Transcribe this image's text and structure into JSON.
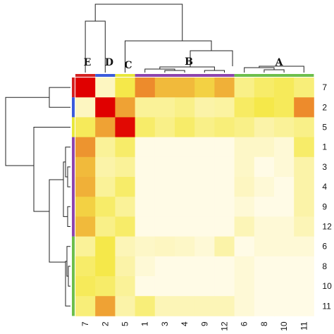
{
  "chart_data": {
    "type": "heatmap",
    "title": "",
    "row_labels": [
      "7",
      "2",
      "5",
      "1",
      "3",
      "4",
      "9",
      "12",
      "6",
      "8",
      "10",
      "11"
    ],
    "col_labels": [
      "7",
      "2",
      "5",
      "1",
      "3",
      "4",
      "9",
      "12",
      "6",
      "8",
      "10",
      "11"
    ],
    "values": [
      [
        1.0,
        0.12,
        0.5,
        0.7,
        0.6,
        0.6,
        0.55,
        0.62,
        0.3,
        0.4,
        0.45,
        0.35
      ],
      [
        0.12,
        1.0,
        0.65,
        0.25,
        0.25,
        0.3,
        0.2,
        0.22,
        0.42,
        0.5,
        0.45,
        0.7
      ],
      [
        0.45,
        0.65,
        0.98,
        0.4,
        0.3,
        0.4,
        0.3,
        0.35,
        0.3,
        0.2,
        0.25,
        0.3
      ],
      [
        0.68,
        0.25,
        0.4,
        0.0,
        0.0,
        0.0,
        0.0,
        0.0,
        0.1,
        0.1,
        0.05,
        0.4
      ],
      [
        0.6,
        0.2,
        0.25,
        0.0,
        0.0,
        0.0,
        0.0,
        0.0,
        0.1,
        0.0,
        0.05,
        0.2
      ],
      [
        0.62,
        0.25,
        0.4,
        0.0,
        0.0,
        0.0,
        0.0,
        0.0,
        0.12,
        0.05,
        0.0,
        0.2
      ],
      [
        0.55,
        0.4,
        0.25,
        0.0,
        0.0,
        0.0,
        0.0,
        0.0,
        0.05,
        0.0,
        0.0,
        0.2
      ],
      [
        0.6,
        0.3,
        0.4,
        0.0,
        0.0,
        0.0,
        0.0,
        0.0,
        0.15,
        0.05,
        0.05,
        0.15
      ],
      [
        0.25,
        0.5,
        0.15,
        0.1,
        0.12,
        0.1,
        0.05,
        0.2,
        0.0,
        0.05,
        0.05,
        0.05
      ],
      [
        0.4,
        0.5,
        0.2,
        0.05,
        0.0,
        0.0,
        0.0,
        0.0,
        0.05,
        0.0,
        0.0,
        0.0
      ],
      [
        0.45,
        0.4,
        0.25,
        0.0,
        0.0,
        0.0,
        0.0,
        0.0,
        0.05,
        0.0,
        0.0,
        0.0
      ],
      [
        0.35,
        0.65,
        0.2,
        0.35,
        0.15,
        0.15,
        0.15,
        0.15,
        0.05,
        0.0,
        0.0,
        0.0
      ]
    ],
    "color_scale": {
      "low": "#fffbe6",
      "mid": "#f5e84a",
      "high": "#e00000"
    },
    "clusters": [
      {
        "label": "E",
        "members": [
          "7"
        ],
        "color": "#d42020"
      },
      {
        "label": "D",
        "members": [
          "2"
        ],
        "color": "#3b5bdb"
      },
      {
        "label": "C",
        "members": [
          "5"
        ],
        "color": "#e8e83a"
      },
      {
        "label": "B",
        "members": [
          "1",
          "3",
          "4",
          "9",
          "12"
        ],
        "color": "#8e44ad"
      },
      {
        "label": "A",
        "members": [
          "6",
          "8",
          "10",
          "11"
        ],
        "color": "#6dbf4b"
      }
    ],
    "dendrogram": true,
    "legend": "none"
  }
}
